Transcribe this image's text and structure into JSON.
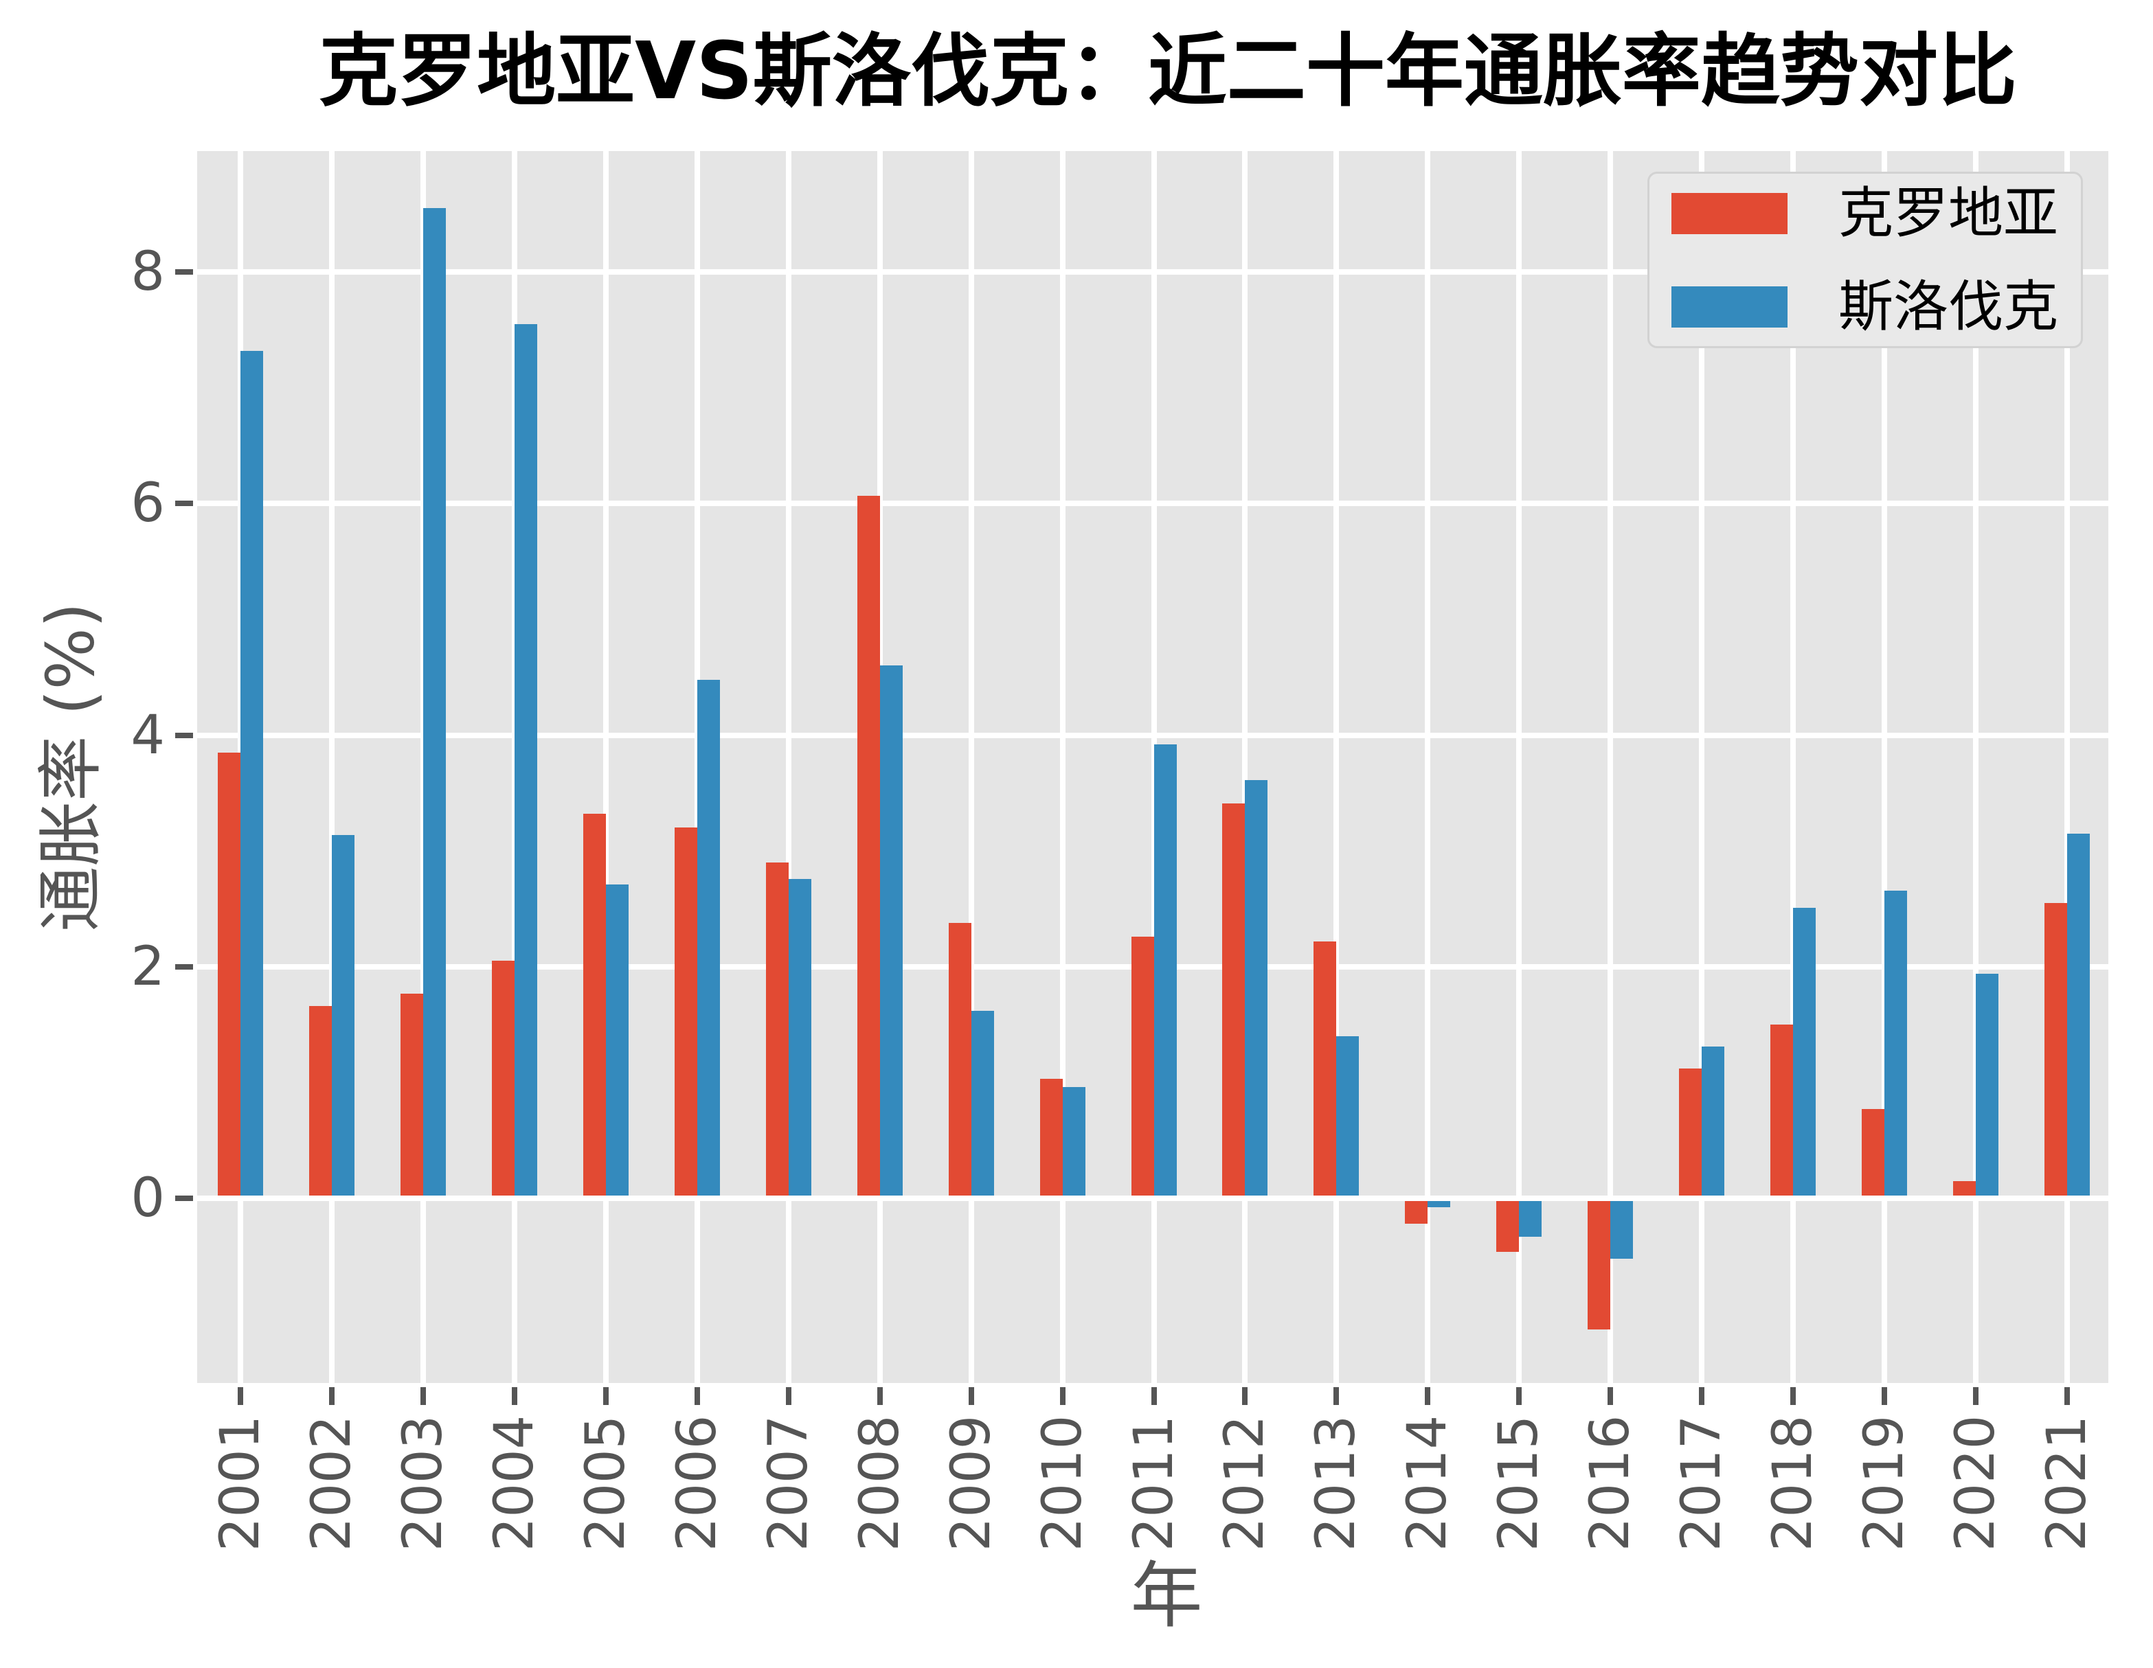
{
  "title": "克罗地亚VS斯洛伐克：近二十年通胀率趋势对比",
  "axes": {
    "ylabel": "通胀率 (%)",
    "xlabel": "年"
  },
  "legend": {
    "items": [
      {
        "label": "克罗地亚",
        "color": "#E24A33"
      },
      {
        "label": "斯洛伐克",
        "color": "#348ABD"
      }
    ]
  },
  "colors": {
    "plot_background": "#E5E5E5",
    "grid": "#FFFFFF",
    "tick_text": "#555555",
    "title_text": "#000000",
    "croatia_red": "#E24A33",
    "slovakia_blue": "#348ABD"
  },
  "chart_data": {
    "type": "bar",
    "title": "克罗地亚VS斯洛伐克：近二十年通胀率趋势对比",
    "xlabel": "年",
    "ylabel": "通胀率 (%)",
    "categories": [
      2001,
      2002,
      2003,
      2004,
      2005,
      2006,
      2007,
      2008,
      2009,
      2010,
      2011,
      2012,
      2013,
      2014,
      2015,
      2016,
      2017,
      2018,
      2019,
      2020,
      2021
    ],
    "series": [
      {
        "name": "克罗地亚",
        "color": "#E24A33",
        "values": [
          3.85,
          1.66,
          1.77,
          2.05,
          3.32,
          3.2,
          2.9,
          6.07,
          2.38,
          1.03,
          2.26,
          3.41,
          2.22,
          -0.22,
          -0.46,
          -1.13,
          1.12,
          1.5,
          0.77,
          0.15,
          2.55
        ]
      },
      {
        "name": "斯洛伐克",
        "color": "#348ABD",
        "values": [
          7.32,
          3.14,
          8.55,
          7.55,
          2.71,
          4.48,
          2.76,
          4.6,
          1.62,
          0.96,
          3.92,
          3.61,
          1.4,
          -0.08,
          -0.33,
          -0.52,
          1.31,
          2.51,
          2.66,
          1.94,
          3.15
        ]
      }
    ],
    "yticks": [
      0,
      2,
      4,
      6,
      8
    ],
    "ylim": [
      -1.61,
      9.04
    ],
    "grid": true,
    "grid_axis": "both",
    "legend_position": "upper right",
    "style": "ggplot"
  }
}
